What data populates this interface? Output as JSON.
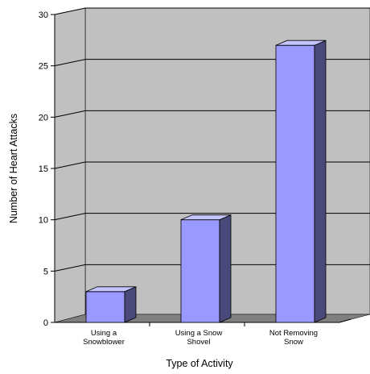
{
  "chart_data": {
    "type": "bar",
    "title": "",
    "xlabel": "Type of Activity",
    "ylabel": "Number of Heart Attacks",
    "categories": [
      [
        "Using a",
        "Snowblower"
      ],
      [
        "Using a Snow",
        "Shovel"
      ],
      [
        "Not Removing",
        "Snow"
      ]
    ],
    "values": [
      3,
      10,
      27
    ],
    "ylim": [
      0,
      30
    ],
    "yticks": [
      0,
      5,
      10,
      15,
      20,
      25,
      30
    ],
    "grid": true,
    "legend": "none",
    "three_d": true
  },
  "colors": {
    "wall": "#c0c0c0",
    "floor": "#808080",
    "bar_front": "#9999ff",
    "bar_side": "#4a4a7a",
    "bar_top": "#c4c4ff",
    "gridline": "#000000",
    "text": "#000000"
  }
}
